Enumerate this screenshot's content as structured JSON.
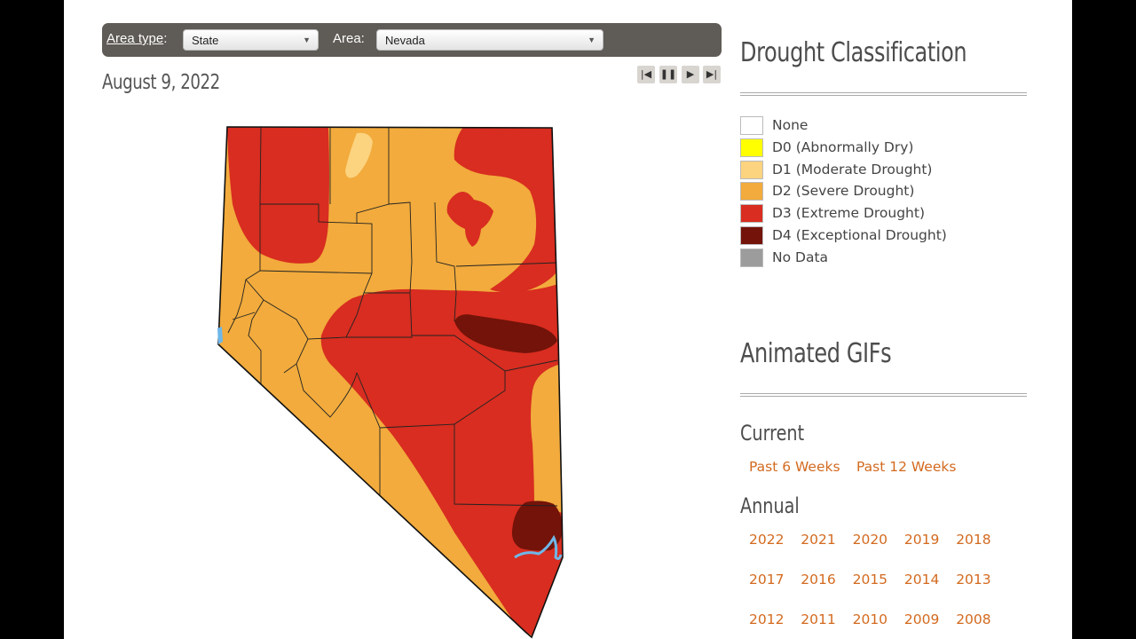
{
  "filters": {
    "area_type_label": "Area type",
    "area_type_colon": ":",
    "area_type_value": "State",
    "area_label": "Area:",
    "area_value": "Nevada"
  },
  "date": "August 9, 2022",
  "playback": {
    "first_icon": "skip-to-first-icon",
    "pause_icon": "pause-icon",
    "next_icon": "step-forward-icon",
    "last_icon": "skip-to-last-icon"
  },
  "map": {
    "region": "Nevada",
    "colors": {
      "none": "#ffffff",
      "d0": "#ffff00",
      "d1": "#fcd37f",
      "d2": "#f2ab3c",
      "d3": "#d82d20",
      "d4": "#731309",
      "no_data": "#9c9c9c",
      "water": "#6fb7e8"
    }
  },
  "legend": {
    "title": "Drought Classification",
    "items": [
      {
        "label": "None",
        "color": "#ffffff"
      },
      {
        "label": "D0 (Abnormally Dry)",
        "color": "#ffff00"
      },
      {
        "label": "D1 (Moderate Drought)",
        "color": "#fcd37f"
      },
      {
        "label": "D2 (Severe Drought)",
        "color": "#f2ab3c"
      },
      {
        "label": "D3 (Extreme Drought)",
        "color": "#d82d20"
      },
      {
        "label": "D4 (Exceptional Drought)",
        "color": "#731309"
      },
      {
        "label": "No Data",
        "color": "#9c9c9c"
      }
    ]
  },
  "animated_gifs": {
    "title": "Animated GIFs",
    "current_title": "Current",
    "current_links": [
      "Past 6 Weeks",
      "Past 12 Weeks"
    ],
    "annual_title": "Annual",
    "years": [
      "2022",
      "2021",
      "2020",
      "2019",
      "2018",
      "2017",
      "2016",
      "2015",
      "2014",
      "2013",
      "2012",
      "2011",
      "2010",
      "2009",
      "2008"
    ]
  }
}
